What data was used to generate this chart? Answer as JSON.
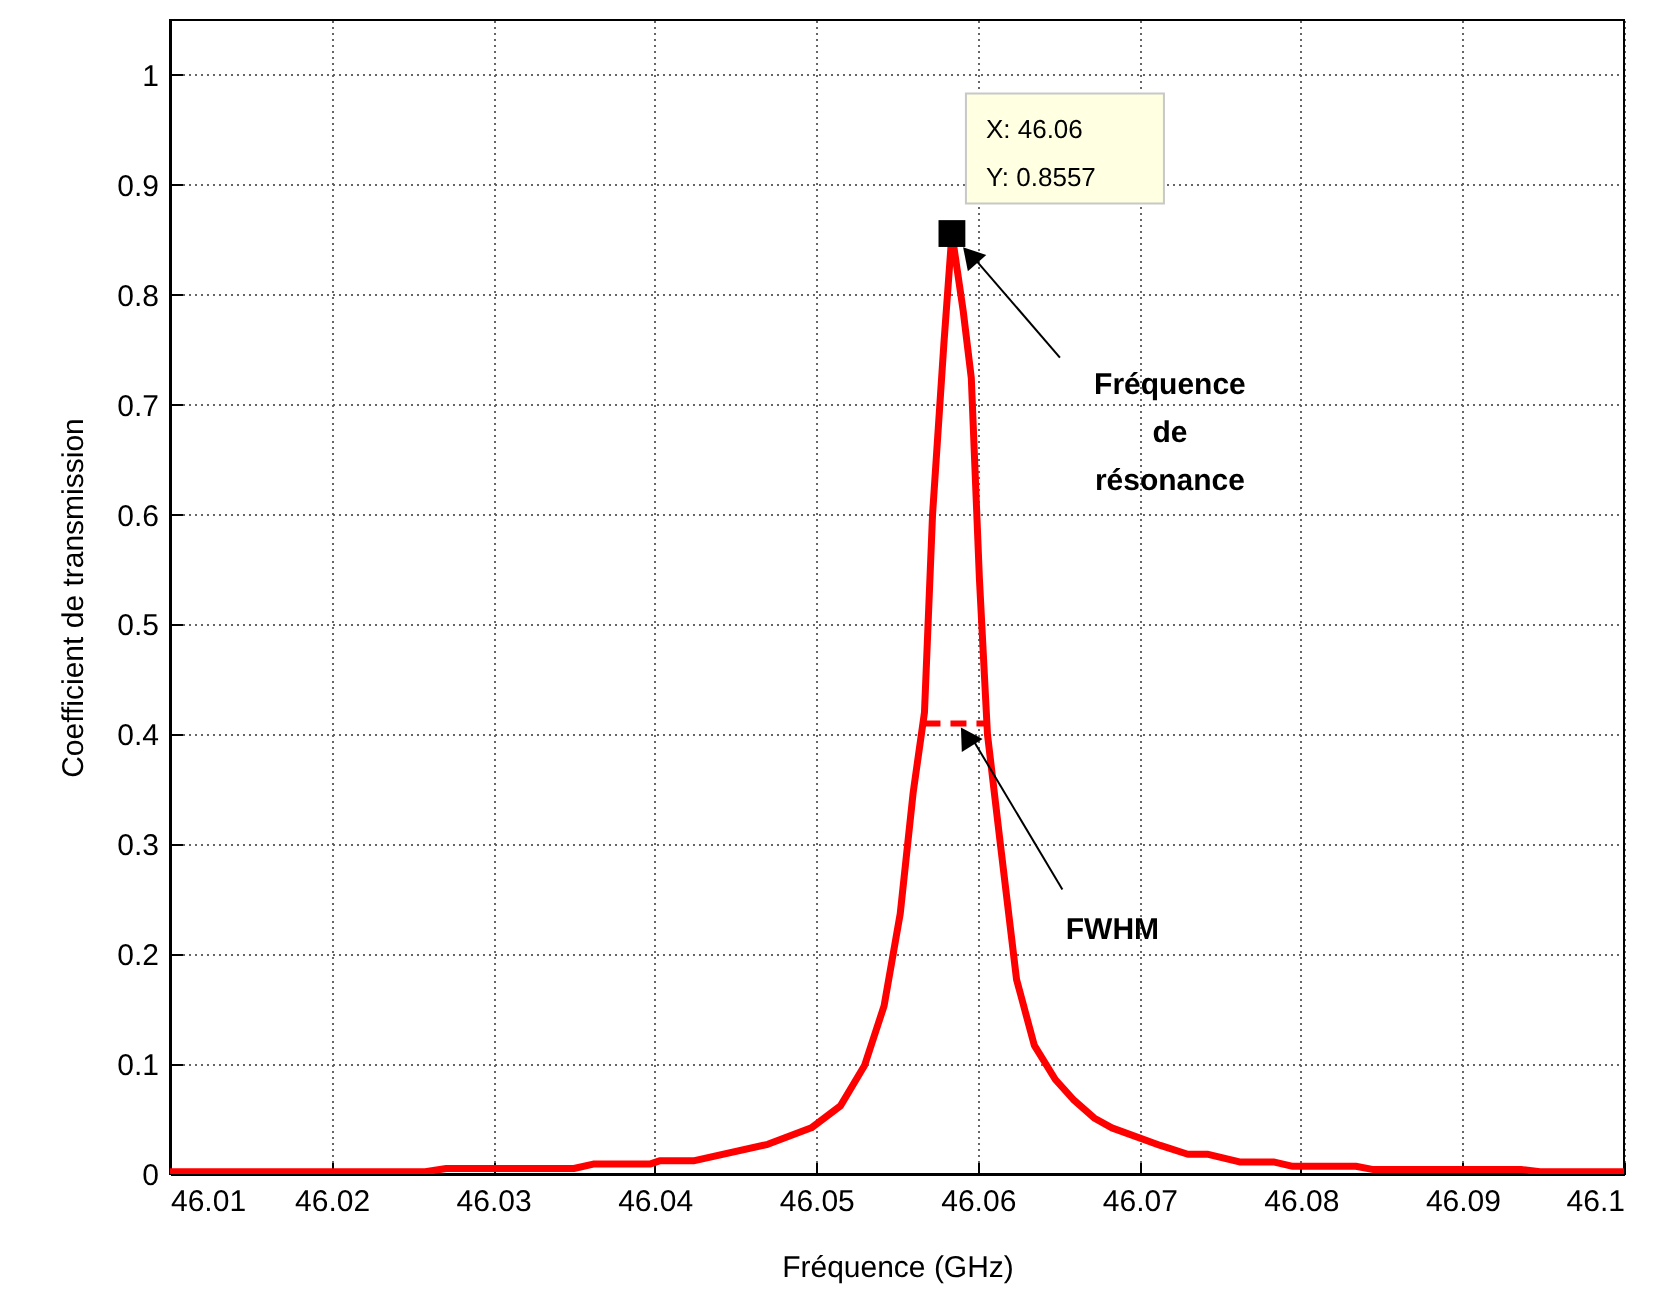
{
  "chart_data": {
    "type": "line",
    "xlabel": "Fréquence (GHz)",
    "ylabel": "Coefficient de transmission",
    "xlim": [
      46.01,
      46.1
    ],
    "xticks": [
      46.01,
      46.02,
      46.03,
      46.04,
      46.05,
      46.06,
      46.07,
      46.08,
      46.09,
      46.1
    ],
    "ylim": [
      0,
      1.05
    ],
    "yticks": [
      0,
      0.1,
      0.2,
      0.3,
      0.4,
      0.5,
      0.6,
      0.7,
      0.8,
      0.9,
      1
    ],
    "grid": true,
    "series": [
      {
        "color": "#ff0000",
        "line_style": "solid",
        "x": [
          46.01,
          46.0258,
          46.0271,
          46.035,
          46.0362,
          46.0397,
          46.0403,
          46.0424,
          46.047,
          46.0497,
          46.0515,
          46.053,
          46.0542,
          46.0552,
          46.056,
          46.0567,
          46.0572,
          46.0579,
          46.0584,
          46.0591,
          46.0596,
          46.0601,
          46.0606,
          46.0614,
          46.0624,
          46.0635,
          46.0648,
          46.0659,
          46.0672,
          46.0683,
          46.0713,
          46.073,
          46.0742,
          46.0762,
          46.0783,
          46.0795,
          46.0834,
          46.0845,
          46.0937,
          46.0948,
          46.1
        ],
        "values": [
          0.002,
          0.002,
          0.005,
          0.005,
          0.009,
          0.009,
          0.012,
          0.012,
          0.027,
          0.042,
          0.062,
          0.099,
          0.153,
          0.237,
          0.347,
          0.42,
          0.6,
          0.755,
          0.8557,
          0.785,
          0.724,
          0.542,
          0.4,
          0.3,
          0.177,
          0.117,
          0.086,
          0.068,
          0.051,
          0.042,
          0.026,
          0.018,
          0.018,
          0.011,
          0.011,
          0.007,
          0.007,
          0.004,
          0.004,
          0.002,
          0.002
        ]
      },
      {
        "type": "line",
        "color": "#ff0000",
        "line_style": "dashed",
        "x": [
          46.0567,
          46.0606
        ],
        "values": [
          0.41,
          0.41
        ]
      },
      {
        "type": "scatter",
        "color": "#000000",
        "marker": "square",
        "x": [
          46.0584
        ],
        "values": [
          0.8557
        ]
      }
    ],
    "annotations": [
      "X: 46.06\nY: 0.8557",
      "Fréquence\nde\nrésonance",
      {
        "text": "FWHM",
        "x": 46.0588,
        "y": 0.41
      }
    ]
  }
}
